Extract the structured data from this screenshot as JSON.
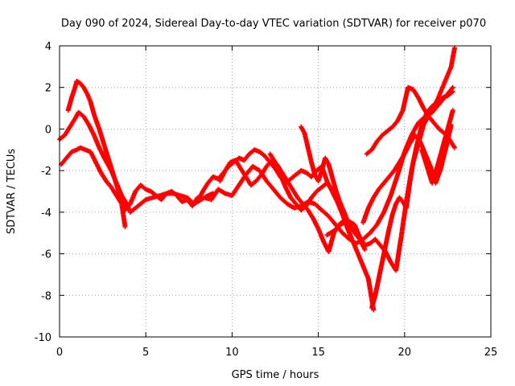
{
  "chart_data": {
    "type": "scatter",
    "title": "Day 090 of 2024, Sidereal Day-to-day VTEC variation (SDTVAR) for receiver p070",
    "xlabel": "GPS time / hours",
    "ylabel": "SDTVAR / TECUs",
    "xlim": [
      0,
      25
    ],
    "ylim": [
      -10,
      4
    ],
    "x_ticks": [
      "0",
      "5",
      "10",
      "15",
      "20",
      "25"
    ],
    "y_ticks": [
      "4",
      "2",
      "0",
      "-2",
      "-4",
      "-6",
      "-8",
      "-10"
    ],
    "grid": true,
    "legend": "none",
    "marker": "plus",
    "color": "#ff0000",
    "series": [
      {
        "tracks": [
          {
            "x": [
              0.0,
              0.3,
              0.6,
              0.9,
              1.1,
              1.4,
              1.7,
              2.0,
              2.3,
              2.6,
              3.0,
              3.3,
              3.6,
              3.9,
              4.1,
              4.4,
              4.7,
              5.0,
              5.4,
              5.8,
              6.2,
              6.6,
              7.0,
              7.4,
              7.8,
              8.2,
              8.6,
              8.9
            ],
            "y": [
              -0.5,
              -0.3,
              0.1,
              0.5,
              0.8,
              0.6,
              0.2,
              -0.3,
              -0.9,
              -1.4,
              -2.0,
              -2.6,
              -3.2,
              -3.6,
              -4.0,
              -3.8,
              -3.6,
              -3.4,
              -3.3,
              -3.2,
              -3.1,
              -3.1,
              -3.2,
              -3.3,
              -3.6,
              -3.4,
              -3.2,
              -3.1
            ]
          },
          {
            "x": [
              0.1,
              0.4,
              0.7,
              1.0,
              1.2,
              1.5,
              1.8,
              2.1,
              2.4,
              2.7,
              3.0,
              3.3,
              3.6,
              3.8
            ],
            "y": [
              -1.7,
              -1.4,
              -1.1,
              -1.0,
              -0.9,
              -1.0,
              -1.1,
              -1.6,
              -2.1,
              -2.5,
              -2.8,
              -3.2,
              -3.6,
              -4.7
            ]
          },
          {
            "x": [
              0.5,
              0.7,
              0.9,
              1.0,
              1.2,
              1.4,
              1.6,
              1.8,
              2.0,
              2.3,
              2.6,
              2.9,
              3.2,
              3.5,
              3.8
            ],
            "y": [
              0.9,
              1.5,
              2.0,
              2.3,
              2.2,
              2.0,
              1.7,
              1.3,
              0.7,
              0.0,
              -0.8,
              -1.6,
              -2.4,
              -3.2,
              -3.9
            ]
          },
          {
            "x": [
              3.8,
              4.1,
              4.4,
              4.7,
              5.0,
              5.3,
              5.6,
              5.9,
              6.2,
              6.5,
              6.8,
              7.1,
              7.4,
              7.7,
              8.0
            ],
            "y": [
              -3.9,
              -3.6,
              -3.0,
              -2.7,
              -2.9,
              -3.0,
              -3.2,
              -3.4,
              -3.1,
              -3.0,
              -3.2,
              -3.5,
              -3.4,
              -3.7,
              -3.3
            ]
          },
          {
            "x": [
              8.0,
              8.3,
              8.6,
              8.9,
              9.2,
              9.5,
              9.8,
              10.1,
              10.4,
              10.7,
              11.0,
              11.3,
              11.6,
              11.9,
              12.2,
              12.5,
              12.8,
              13.1,
              13.4,
              13.7,
              14.0,
              14.3,
              14.6,
              14.9,
              15.2,
              15.5,
              15.8,
              16.1
            ],
            "y": [
              -3.5,
              -3.0,
              -2.6,
              -2.3,
              -2.4,
              -2.1,
              -1.8,
              -1.6,
              -1.4,
              -1.5,
              -1.2,
              -1.0,
              -1.1,
              -1.3,
              -1.6,
              -1.9,
              -2.3,
              -2.6,
              -2.4,
              -2.2,
              -2.0,
              -2.1,
              -2.3,
              -2.0,
              -1.8,
              -2.5,
              -3.0,
              -3.5
            ]
          },
          {
            "x": [
              8.4,
              8.8,
              9.2,
              9.6,
              10.0,
              10.4,
              10.8,
              11.2,
              11.6,
              12.0,
              12.4,
              12.8,
              13.2,
              13.6,
              14.0,
              14.4,
              14.8,
              15.2,
              15.6,
              16.0,
              16.4,
              16.8,
              17.2,
              17.6,
              18.0,
              18.4,
              18.8,
              19.2,
              19.6,
              20.0,
              20.4,
              20.8,
              21.2,
              21.6,
              22.0,
              22.4,
              22.8
            ],
            "y": [
              -3.3,
              -3.4,
              -2.9,
              -3.1,
              -3.2,
              -2.7,
              -2.2,
              -1.8,
              -2.0,
              -2.5,
              -2.9,
              -3.3,
              -3.6,
              -3.8,
              -3.7,
              -3.5,
              -3.6,
              -3.9,
              -4.2,
              -4.6,
              -5.0,
              -5.3,
              -5.5,
              -5.3,
              -5.0,
              -4.6,
              -4.0,
              -3.2,
              -2.2,
              -1.1,
              -0.3,
              0.3,
              0.6,
              0.8,
              1.2,
              1.6,
              2.0
            ]
          },
          {
            "x": [
              9.3,
              9.6,
              9.9,
              10.2,
              10.5,
              10.8,
              11.1,
              11.4,
              11.7,
              12.0,
              12.3,
              12.6,
              12.9,
              13.2,
              13.5,
              13.8,
              14.1,
              14.4,
              14.7,
              15.0,
              15.3,
              15.6,
              15.9,
              16.2,
              16.5,
              16.8,
              17.1,
              17.4,
              17.7
            ],
            "y": [
              -2.5,
              -2.0,
              -1.6,
              -1.5,
              -1.9,
              -2.3,
              -2.7,
              -2.5,
              -2.2,
              -1.8,
              -1.5,
              -1.7,
              -2.1,
              -2.5,
              -2.9,
              -3.3,
              -3.6,
              -3.9,
              -4.3,
              -4.8,
              -5.4,
              -5.9,
              -5.0,
              -4.6,
              -4.4,
              -4.7,
              -5.0,
              -5.3,
              -5.8
            ]
          },
          {
            "x": [
              12.2,
              12.5,
              12.8,
              13.1,
              13.4,
              13.7,
              14.0,
              14.3,
              14.6,
              14.9,
              15.2,
              15.5,
              15.8,
              16.1,
              16.4,
              16.7,
              17.0,
              17.3,
              17.6,
              17.9,
              18.2
            ],
            "y": [
              -1.2,
              -1.6,
              -2.2,
              -2.8,
              -3.3,
              -3.6,
              -3.9,
              -3.7,
              -3.3,
              -3.0,
              -2.8,
              -2.6,
              -2.9,
              -3.5,
              -4.1,
              -4.8,
              -5.4,
              -6.0,
              -6.6,
              -7.2,
              -8.7
            ]
          },
          {
            "x": [
              14.0,
              14.2,
              14.4,
              14.6,
              14.8,
              15.0,
              15.2,
              15.4,
              15.6,
              15.8,
              16.0,
              16.2,
              16.4,
              16.6,
              16.8,
              17.0
            ],
            "y": [
              0.1,
              -0.2,
              -0.9,
              -1.6,
              -2.2,
              -2.5,
              -2.0,
              -1.4,
              -1.7,
              -2.3,
              -2.9,
              -3.4,
              -3.8,
              -4.2,
              -4.6,
              -4.9
            ]
          },
          {
            "x": [
              15.5,
              15.9,
              16.3,
              16.7,
              17.1,
              17.4,
              17.7,
              18.0,
              18.3,
              18.6,
              18.9,
              19.2,
              19.5,
              19.8,
              20.1,
              20.4,
              20.7,
              21.0,
              21.3,
              21.6,
              21.9,
              22.2,
              22.5,
              22.8
            ],
            "y": [
              -5.1,
              -4.9,
              -4.6,
              -4.4,
              -4.6,
              -5.2,
              -5.6,
              -5.5,
              -5.3,
              -5.6,
              -5.9,
              -6.4,
              -6.8,
              -5.2,
              -3.5,
              -2.0,
              -0.8,
              0.2,
              0.8,
              1.1,
              1.3,
              1.5,
              1.6,
              1.8
            ]
          },
          {
            "x": [
              18.1,
              18.3,
              18.5,
              18.7,
              18.9,
              19.1,
              19.3,
              19.5,
              19.7,
              19.9,
              20.1,
              20.3,
              20.5,
              20.7,
              20.9,
              21.1,
              21.3,
              21.5,
              21.7,
              21.9,
              22.1,
              22.3,
              22.5,
              22.7,
              22.9
            ],
            "y": [
              -8.6,
              -8.0,
              -7.2,
              -6.4,
              -5.6,
              -4.8,
              -4.1,
              -3.6,
              -3.3,
              -3.5,
              -3.8,
              -2.6,
              -1.6,
              -1.0,
              -0.4,
              0.2,
              0.5,
              0.8,
              1.1,
              1.4,
              1.8,
              2.2,
              2.6,
              3.0,
              3.9
            ]
          },
          {
            "x": [
              17.8,
              18.1,
              18.4,
              18.7,
              19.0,
              19.3,
              19.6,
              19.9,
              20.2,
              20.5,
              20.8,
              21.1,
              21.4,
              21.7,
              22.0,
              22.3,
              22.6,
              22.9
            ],
            "y": [
              -1.2,
              -1.0,
              -0.6,
              -0.3,
              -0.1,
              0.1,
              0.4,
              0.9,
              2.0,
              1.9,
              1.5,
              1.0,
              0.6,
              0.3,
              0.0,
              -0.2,
              -0.5,
              -0.9
            ]
          },
          {
            "x": [
              17.6,
              17.9,
              18.2,
              18.5,
              18.8,
              19.1,
              19.4,
              19.7,
              20.0,
              20.3,
              20.6,
              20.9,
              21.2,
              21.5,
              21.8,
              22.1,
              22.4,
              22.7
            ],
            "y": [
              -4.5,
              -3.8,
              -3.3,
              -2.9,
              -2.6,
              -2.3,
              -2.0,
              -1.6,
              -1.2,
              -0.7,
              -0.3,
              -0.6,
              -1.2,
              -1.8,
              -2.6,
              -1.9,
              -0.9,
              0.2
            ]
          },
          {
            "x": [
              21.0,
              21.3,
              21.6,
              21.9,
              22.2,
              22.5,
              22.8
            ],
            "y": [
              -1.0,
              -1.8,
              -2.6,
              -1.8,
              -0.9,
              0.0,
              0.9
            ]
          }
        ]
      }
    ]
  }
}
